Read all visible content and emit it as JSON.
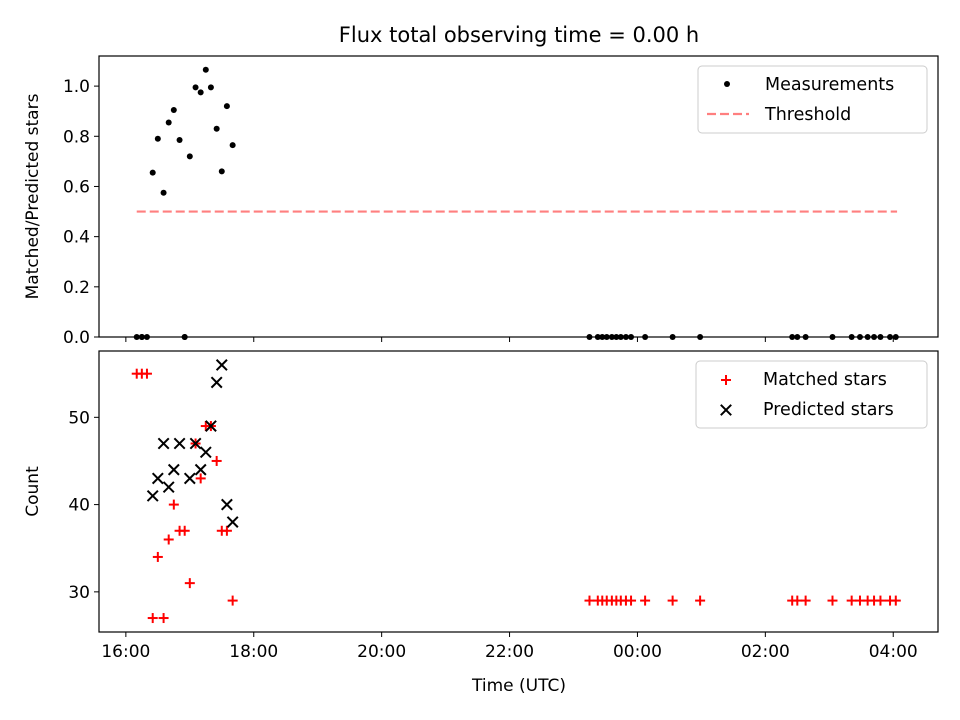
{
  "chart_data": {
    "title": "Flux total observing time = 0.00 h",
    "xlabel": "Time (UTC)",
    "x_units": "hours since 16:00 UTC",
    "xlim": [
      -0.42,
      12.7
    ],
    "x_ticks": [
      {
        "value": 0,
        "label": "16:00"
      },
      {
        "value": 2,
        "label": "18:00"
      },
      {
        "value": 4,
        "label": "20:00"
      },
      {
        "value": 6,
        "label": "22:00"
      },
      {
        "value": 8,
        "label": "00:00"
      },
      {
        "value": 10,
        "label": "02:00"
      },
      {
        "value": 12,
        "label": "04:00"
      }
    ],
    "colors": {
      "measurements": "#000000",
      "threshold": "#ff7f7f",
      "matched": "#ff0000",
      "predicted": "#000000"
    },
    "panels": [
      {
        "type": "scatter",
        "ylabel": "Matched/Predicted stars",
        "ylim": [
          0,
          1.12
        ],
        "y_ticks": [
          {
            "value": 0,
            "label": "0.0"
          },
          {
            "value": 0.2,
            "label": "0.2"
          },
          {
            "value": 0.4,
            "label": "0.4"
          },
          {
            "value": 0.6,
            "label": "0.6"
          },
          {
            "value": 0.8,
            "label": "0.8"
          },
          {
            "value": 1.0,
            "label": "1.0"
          }
        ],
        "legend": [
          "Measurements",
          "Threshold"
        ],
        "legend_position": "top-right",
        "threshold": {
          "value": 0.5,
          "x_start": 0.17,
          "x_end": 12.06
        },
        "measurements": {
          "x": [
            0.17,
            0.25,
            0.33,
            0.42,
            0.5,
            0.59,
            0.67,
            0.75,
            0.84,
            0.92,
            1.0,
            1.09,
            1.17,
            1.25,
            1.33,
            1.42,
            1.5,
            1.58,
            1.67,
            0.25,
            0.92,
            7.25,
            7.38,
            7.45,
            7.52,
            7.6,
            7.67,
            7.74,
            7.82,
            7.9,
            8.12,
            8.55,
            8.98,
            10.42,
            10.5,
            10.63,
            11.05,
            11.35,
            11.48,
            11.6,
            11.7,
            11.8,
            11.95,
            12.04
          ],
          "y": [
            0,
            0,
            0,
            0.655,
            0.79,
            0.575,
            0.855,
            0.905,
            0.785,
            0,
            0.72,
            0.995,
            0.975,
            1.065,
            0.995,
            0.83,
            0.66,
            0.92,
            0.765,
            0,
            0,
            0,
            0,
            0,
            0,
            0,
            0,
            0,
            0,
            0,
            0,
            0,
            0,
            0,
            0,
            0,
            0,
            0,
            0,
            0,
            0,
            0,
            0,
            0
          ]
        }
      },
      {
        "type": "scatter",
        "ylabel": "Count",
        "ylim": [
          25.4,
          57.6
        ],
        "y_ticks": [
          {
            "value": 30,
            "label": "30"
          },
          {
            "value": 40,
            "label": "40"
          },
          {
            "value": 50,
            "label": "50"
          }
        ],
        "legend": [
          "Matched stars",
          "Predicted stars"
        ],
        "legend_position": "top-right",
        "series": [
          {
            "name": "Matched stars",
            "marker": "+",
            "x": [
              0.17,
              0.25,
              0.33,
              0.42,
              0.5,
              0.59,
              0.67,
              0.75,
              0.84,
              0.92,
              1.0,
              1.09,
              1.17,
              1.25,
              1.33,
              1.42,
              1.5,
              1.58,
              1.67,
              7.25,
              7.38,
              7.45,
              7.52,
              7.6,
              7.67,
              7.74,
              7.82,
              7.9,
              8.12,
              8.55,
              8.98,
              10.42,
              10.5,
              10.63,
              11.05,
              11.35,
              11.48,
              11.6,
              11.7,
              11.8,
              11.95,
              12.04
            ],
            "y": [
              55,
              55,
              55,
              27,
              34,
              27,
              36,
              40,
              37,
              37,
              31,
              47,
              43,
              49,
              49,
              45,
              37,
              37,
              29,
              29,
              29,
              29,
              29,
              29,
              29,
              29,
              29,
              29,
              29,
              29,
              29,
              29,
              29,
              29,
              29,
              29,
              29,
              29,
              29,
              29,
              29,
              29
            ]
          },
          {
            "name": "Predicted stars",
            "marker": "x",
            "x": [
              0.42,
              0.5,
              0.59,
              0.67,
              0.75,
              0.84,
              1.0,
              1.09,
              1.17,
              1.25,
              1.33,
              1.42,
              1.5,
              1.58,
              1.67
            ],
            "y": [
              41,
              43,
              47,
              42,
              44,
              47,
              43,
              47,
              44,
              46,
              49,
              54,
              56,
              40,
              38
            ]
          }
        ]
      }
    ]
  }
}
